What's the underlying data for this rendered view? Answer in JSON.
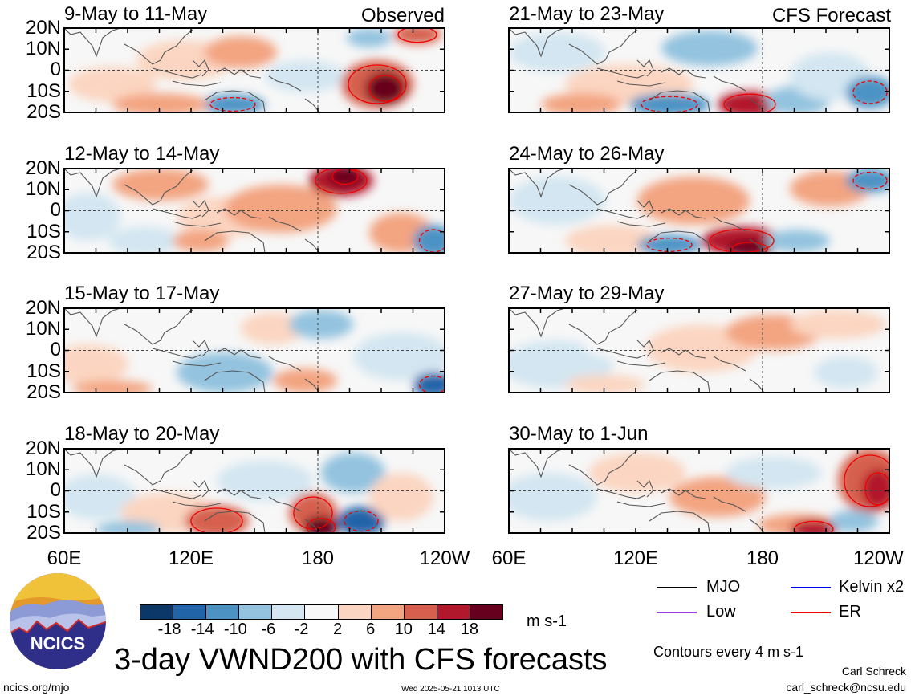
{
  "panels": [
    {
      "title": "9-May to 11-May",
      "tag": "Observed"
    },
    {
      "title": "12-May to 14-May",
      "tag": ""
    },
    {
      "title": "15-May to 17-May",
      "tag": ""
    },
    {
      "title": "18-May to 20-May",
      "tag": ""
    },
    {
      "title": "21-May to 23-May",
      "tag": "CFS Forecast"
    },
    {
      "title": "24-May to 26-May",
      "tag": ""
    },
    {
      "title": "27-May to 29-May",
      "tag": ""
    },
    {
      "title": "30-May to 1-Jun",
      "tag": ""
    }
  ],
  "lat_labels": [
    "20N",
    "10N",
    "0",
    "10S",
    "20S"
  ],
  "lon_labels": [
    "60E",
    "120E",
    "180",
    "120W"
  ],
  "colorbar": {
    "ticks": [
      "-18",
      "-14",
      "-10",
      "-6",
      "-2",
      "2",
      "6",
      "10",
      "14",
      "18"
    ],
    "colors": [
      "#0b3868",
      "#2264a8",
      "#4c93c4",
      "#93c3df",
      "#d3e6f1",
      "#f7f7f7",
      "#fbd5c1",
      "#f3a481",
      "#d6604d",
      "#b2182b",
      "#67001f"
    ],
    "units": "m s-1"
  },
  "legend": {
    "items": [
      {
        "label": "MJO",
        "color": "#000000"
      },
      {
        "label": "Kelvin x2",
        "color": "#0000ee"
      },
      {
        "label": "Low",
        "color": "#9a3ce0"
      },
      {
        "label": "ER",
        "color": "#ee0000"
      }
    ],
    "contours_note": "Contours every 4 m s-1"
  },
  "footer": {
    "title": "3-day VWND200 with CFS forecasts",
    "logo_text": "NCICS",
    "url": "ncics.org/mjo",
    "timestamp": "Wed 2025-05-21 1013 UTC",
    "author": "Carl Schreck",
    "email": "carl_schreck@ncsu.edu"
  }
}
